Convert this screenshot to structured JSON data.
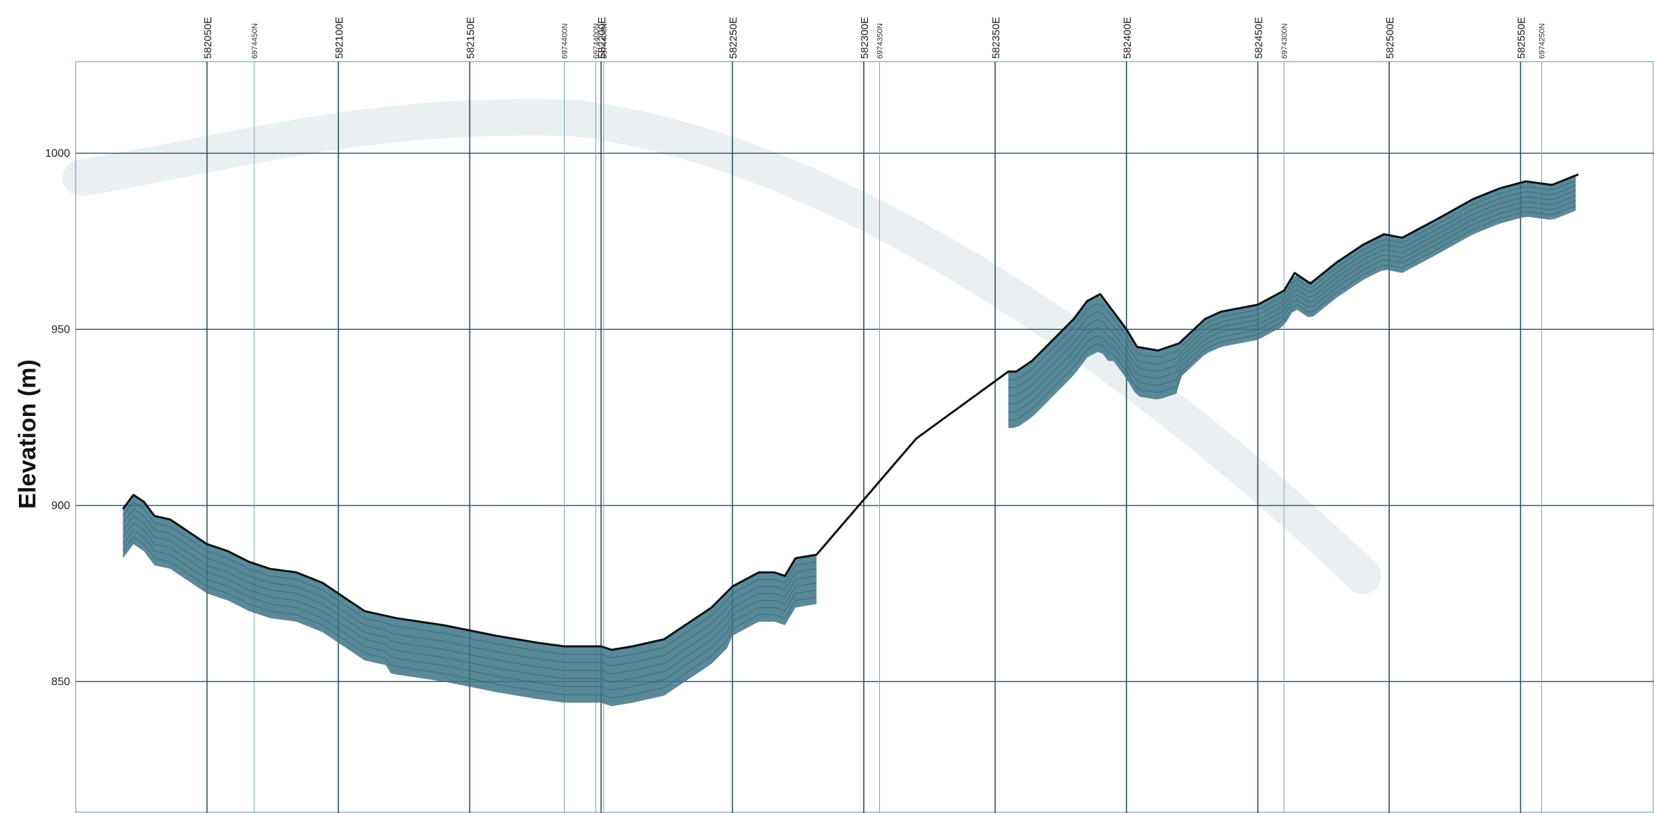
{
  "chart_data": {
    "type": "line",
    "title": "",
    "ylabel": "Elevation (m)",
    "xlabel": "",
    "ylim": [
      814,
      1026
    ],
    "y_ticks": [
      850,
      900,
      950,
      1000
    ],
    "easting_gridlines": [
      {
        "x": 582050,
        "label": "582050E"
      },
      {
        "x": 582100,
        "label": "582100E"
      },
      {
        "x": 582150,
        "label": "582150E"
      },
      {
        "x": 582200,
        "label": "582200E"
      },
      {
        "x": 582250,
        "label": "582250E"
      },
      {
        "x": 582300,
        "label": "582300E"
      },
      {
        "x": 582350,
        "label": "582350E"
      },
      {
        "x": 582400,
        "label": "582400E"
      },
      {
        "x": 582450,
        "label": "582450E"
      },
      {
        "x": 582500,
        "label": "582500E"
      },
      {
        "x": 582550,
        "label": "582550E"
      }
    ],
    "northing_gridlines": [
      {
        "x": 582068,
        "label": "6974450N"
      },
      {
        "x": 582186,
        "label": "6974400N"
      },
      {
        "x": 582198,
        "label": "6974400N"
      },
      {
        "x": 582201,
        "label": "6974400N"
      },
      {
        "x": 582306,
        "label": "6974350N"
      },
      {
        "x": 582460,
        "label": "6974300N"
      },
      {
        "x": 582558,
        "label": "6974250N"
      }
    ],
    "series": [
      {
        "values": [
          [
            582018,
            899
          ],
          [
            582022,
            903
          ],
          [
            582026,
            901
          ],
          [
            582030,
            897
          ],
          [
            582036,
            896
          ],
          [
            582042,
            893
          ],
          [
            582050,
            889
          ],
          [
            582058,
            887
          ],
          [
            582066,
            884
          ],
          [
            582074,
            882
          ],
          [
            582084,
            881
          ],
          [
            582094,
            878
          ],
          [
            582102,
            874
          ],
          [
            582110,
            870
          ],
          [
            582122,
            868
          ],
          [
            582140,
            866
          ],
          [
            582160,
            863
          ],
          [
            582176,
            861
          ],
          [
            582186,
            860
          ],
          [
            582200,
            860
          ],
          [
            582204,
            859
          ],
          [
            582212,
            860
          ],
          [
            582224,
            862
          ],
          [
            582232,
            866
          ],
          [
            582242,
            871
          ],
          [
            582250,
            877
          ],
          [
            582260,
            881
          ],
          [
            582266,
            881
          ],
          [
            582270,
            880
          ],
          [
            582274,
            885
          ],
          [
            582282,
            886
          ],
          [
            582320,
            919
          ],
          [
            582355,
            938
          ],
          [
            582358,
            938
          ],
          [
            582364,
            941
          ],
          [
            582372,
            947
          ],
          [
            582380,
            953
          ],
          [
            582385,
            958
          ],
          [
            582390,
            960
          ],
          [
            582395,
            955
          ],
          [
            582400,
            950
          ],
          [
            582404,
            945
          ],
          [
            582412,
            944
          ],
          [
            582420,
            946
          ],
          [
            582430,
            953
          ],
          [
            582436,
            955
          ],
          [
            582450,
            957
          ],
          [
            582460,
            961
          ],
          [
            582464,
            966
          ],
          [
            582470,
            963
          ],
          [
            582480,
            969
          ],
          [
            582490,
            974
          ],
          [
            582498,
            977
          ],
          [
            582505,
            976
          ],
          [
            582520,
            982
          ],
          [
            582532,
            987
          ],
          [
            582542,
            990
          ],
          [
            582552,
            992
          ],
          [
            582562,
            991
          ],
          [
            582572,
            994
          ]
        ]
      }
    ],
    "colors": {
      "gridline": "#2a4e5e",
      "profile_line": "#111111",
      "radargram": "#3d7488",
      "ghost": "#d8e2e8"
    }
  }
}
